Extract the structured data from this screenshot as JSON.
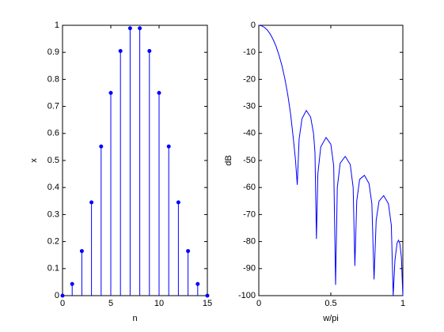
{
  "chart_data": [
    {
      "type": "stem",
      "color": "#0000ff",
      "xlabel": "n",
      "ylabel": "x",
      "x": [
        0,
        1,
        2,
        3,
        4,
        5,
        6,
        7,
        8,
        9,
        10,
        11,
        12,
        13,
        14,
        15
      ],
      "values": [
        0,
        0.043,
        0.165,
        0.345,
        0.552,
        0.75,
        0.905,
        0.989,
        0.989,
        0.905,
        0.75,
        0.552,
        0.345,
        0.165,
        0.043,
        0
      ],
      "xlim": [
        0,
        15
      ],
      "ylim": [
        0,
        1
      ],
      "xticks": [
        0,
        5,
        10,
        15
      ],
      "yticks": [
        0,
        0.1,
        0.2,
        0.3,
        0.4,
        0.5,
        0.6,
        0.7,
        0.8,
        0.9,
        1
      ]
    },
    {
      "type": "line",
      "color": "#0000ff",
      "xlabel": "w/pi",
      "ylabel": "dB",
      "x": [
        0,
        0.02,
        0.04,
        0.06,
        0.08,
        0.1,
        0.12,
        0.14,
        0.16,
        0.18,
        0.2,
        0.22,
        0.24,
        0.255,
        0.267,
        0.28,
        0.3,
        0.33,
        0.36,
        0.38,
        0.39,
        0.4,
        0.41,
        0.43,
        0.467,
        0.5,
        0.52,
        0.533,
        0.545,
        0.565,
        0.6,
        0.635,
        0.655,
        0.667,
        0.68,
        0.7,
        0.733,
        0.765,
        0.785,
        0.8,
        0.815,
        0.835,
        0.867,
        0.9,
        0.92,
        0.933,
        0.945,
        0.96,
        0.97,
        0.98,
        0.99,
        1
      ],
      "values": [
        0,
        -0.2,
        -0.8,
        -1.8,
        -3.3,
        -5.3,
        -7.8,
        -11,
        -14.8,
        -19.5,
        -25.3,
        -32.5,
        -42,
        -50,
        -59,
        -42,
        -34.5,
        -31.5,
        -34,
        -40,
        -47,
        -79,
        -55,
        -45,
        -41.5,
        -44,
        -52,
        -96,
        -60,
        -51,
        -48.5,
        -51.5,
        -60,
        -89,
        -65,
        -57,
        -55.5,
        -58.5,
        -66,
        -94,
        -72,
        -65,
        -63,
        -66,
        -74,
        -100,
        -87,
        -80.5,
        -79.5,
        -81,
        -86,
        -100
      ],
      "xlim": [
        0,
        1
      ],
      "ylim": [
        -100,
        0
      ],
      "xticks": [
        0,
        0.5,
        1
      ],
      "yticks": [
        0,
        -10,
        -20,
        -30,
        -40,
        -50,
        -60,
        -70,
        -80,
        -90,
        -100
      ]
    }
  ]
}
